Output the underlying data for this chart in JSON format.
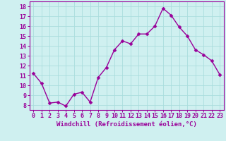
{
  "x": [
    0,
    1,
    2,
    3,
    4,
    5,
    6,
    7,
    8,
    9,
    10,
    11,
    12,
    13,
    14,
    15,
    16,
    17,
    18,
    19,
    20,
    21,
    22,
    23
  ],
  "y": [
    11.2,
    10.2,
    8.2,
    8.3,
    7.9,
    9.1,
    9.3,
    8.3,
    10.8,
    11.8,
    13.6,
    14.5,
    14.2,
    15.2,
    15.2,
    16.0,
    17.8,
    17.1,
    15.9,
    15.0,
    13.6,
    13.1,
    12.5,
    11.1
  ],
  "line_color": "#990099",
  "marker": "D",
  "marker_size": 2.5,
  "linewidth": 1.0,
  "background_color": "#cff0f0",
  "grid_color": "#aadddd",
  "xlabel": "Windchill (Refroidissement éolien,°C)",
  "xlabel_fontsize": 6.5,
  "xlabel_color": "#990099",
  "yticks": [
    8,
    9,
    10,
    11,
    12,
    13,
    14,
    15,
    16,
    17,
    18
  ],
  "xticks": [
    0,
    1,
    2,
    3,
    4,
    5,
    6,
    7,
    8,
    9,
    10,
    11,
    12,
    13,
    14,
    15,
    16,
    17,
    18,
    19,
    20,
    21,
    22,
    23
  ],
  "tick_color": "#990099",
  "tick_fontsize": 6.0,
  "ylim": [
    7.5,
    18.5
  ],
  "xlim": [
    -0.5,
    23.5
  ]
}
